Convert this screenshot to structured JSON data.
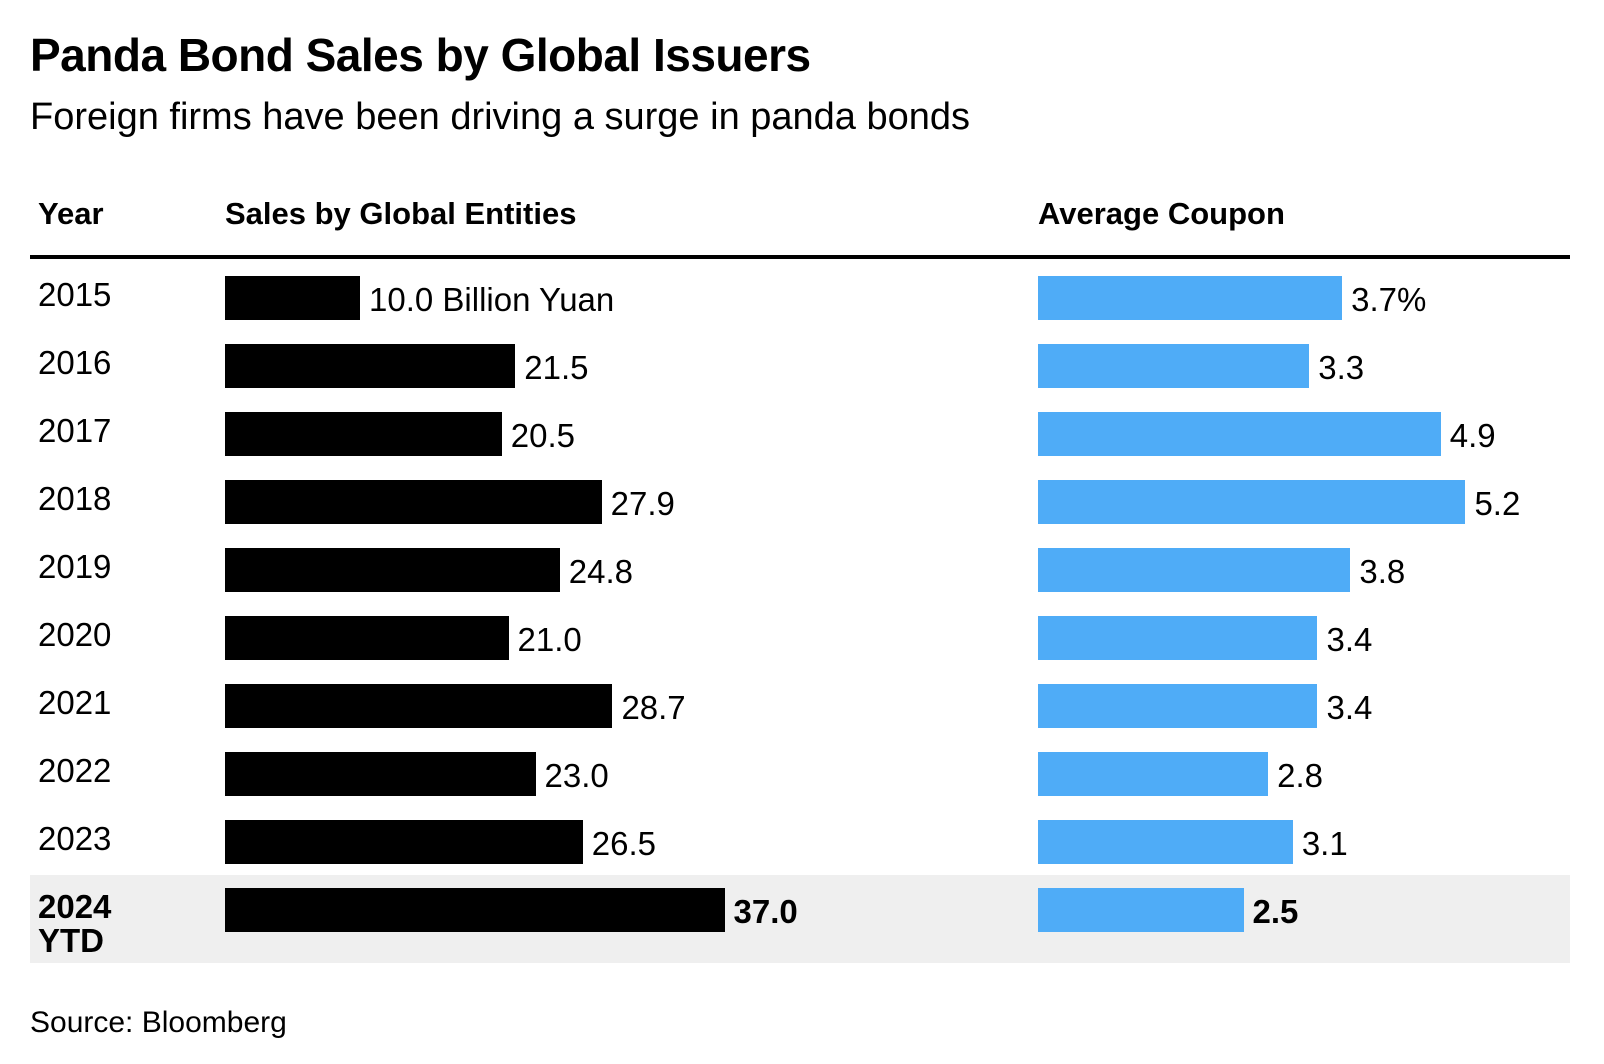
{
  "title": "Panda Bond Sales by Global Issuers",
  "subtitle": "Foreign firms have been driving a surge in panda bonds",
  "headers": {
    "year": "Year",
    "sales": "Sales by Global Entities",
    "coupon": "Average Coupon"
  },
  "source": "Source: Bloomberg",
  "colors": {
    "sales_bar": "#000000",
    "coupon_bar": "#4facf7",
    "highlight_row": "#efefef"
  },
  "chart_data": {
    "type": "bar",
    "orientation": "horizontal",
    "categories": [
      "2015",
      "2016",
      "2017",
      "2018",
      "2019",
      "2020",
      "2021",
      "2022",
      "2023",
      "2024 YTD"
    ],
    "series": [
      {
        "name": "Sales by Global Entities",
        "values": [
          10.0,
          21.5,
          20.5,
          27.9,
          24.8,
          21.0,
          28.7,
          23.0,
          26.5,
          37.0
        ],
        "labels": [
          "10.0 Billion Yuan",
          "21.5",
          "20.5",
          "27.9",
          "24.8",
          "21.0",
          "28.7",
          "23.0",
          "26.5",
          "37.0"
        ]
      },
      {
        "name": "Average Coupon",
        "values": [
          3.7,
          3.3,
          4.9,
          5.2,
          3.8,
          3.4,
          3.4,
          2.8,
          3.1,
          2.5
        ],
        "labels": [
          "3.7%",
          "3.3",
          "4.9",
          "5.2",
          "3.8",
          "3.4",
          "3.4",
          "2.8",
          "3.1",
          "2.5"
        ]
      }
    ],
    "highlighted_category": "2024 YTD",
    "title": "Panda Bond Sales by Global Issuers",
    "subtitle": "Foreign firms have been driving a surge in panda bonds",
    "grid": false
  }
}
